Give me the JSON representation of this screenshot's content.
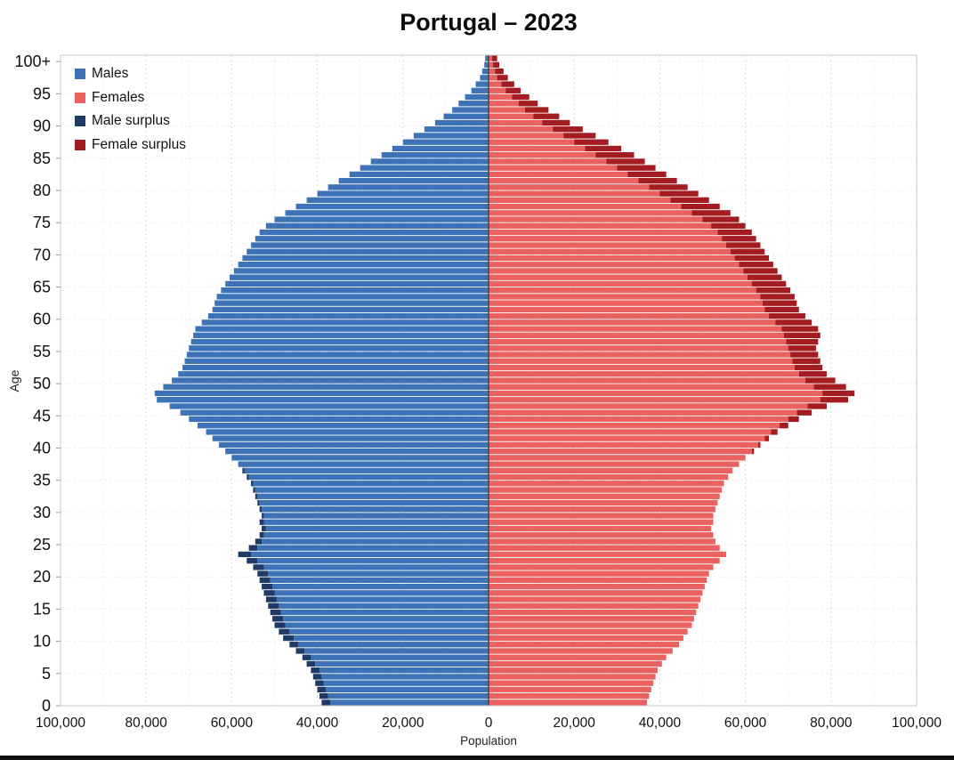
{
  "title": "Portugal – 2023",
  "axis": {
    "xlabel": "Population",
    "ylabel": "Age"
  },
  "legend": [
    {
      "label": "Males",
      "color": "#3d73b6"
    },
    {
      "label": "Females",
      "color": "#ea6160"
    },
    {
      "label": "Male surplus",
      "color": "#203a66"
    },
    {
      "label": "Female surplus",
      "color": "#a21c21"
    }
  ],
  "chart_data": {
    "type": "bar",
    "subtype": "population-pyramid",
    "title": "Portugal – 2023",
    "xlabel": "Population",
    "ylabel": "Age",
    "age_range": [
      0,
      100
    ],
    "top_bin_label": "100+",
    "xlim": [
      -100000,
      100000
    ],
    "grid": true,
    "legend_position": "upper-left",
    "x_ticks": [
      -100000,
      -80000,
      -60000,
      -40000,
      -20000,
      0,
      20000,
      40000,
      60000,
      80000,
      100000
    ],
    "x_tick_labels": [
      "100,000",
      "80,000",
      "60,000",
      "40,000",
      "20,000",
      "0",
      "20,000",
      "40,000",
      "60,000",
      "80,000",
      "100,000"
    ],
    "y_ticks": [
      0,
      5,
      10,
      15,
      20,
      25,
      30,
      35,
      40,
      45,
      50,
      55,
      60,
      65,
      70,
      75,
      80,
      85,
      90,
      95,
      100
    ],
    "y_tick_labels": [
      "0",
      "5",
      "10",
      "15",
      "20",
      "25",
      "30",
      "35",
      "40",
      "45",
      "50",
      "55",
      "60",
      "65",
      "70",
      "75",
      "80",
      "85",
      "90",
      "95",
      "100+"
    ],
    "series": [
      {
        "name": "Males",
        "side": "left",
        "color": "#3d73b6",
        "surplus_color": "#203a66",
        "values": [
          39000,
          39500,
          40000,
          40500,
          41000,
          41500,
          42500,
          43500,
          45000,
          46500,
          48000,
          49000,
          50000,
          50500,
          51000,
          51500,
          52000,
          52500,
          53000,
          53500,
          54000,
          55000,
          56500,
          58500,
          56000,
          54500,
          53500,
          53000,
          53500,
          53000,
          53500,
          54000,
          54500,
          55000,
          55500,
          56500,
          57500,
          58500,
          60000,
          61500,
          63000,
          64500,
          66000,
          68000,
          70000,
          72000,
          74500,
          77500,
          78000,
          76000,
          74000,
          72500,
          71500,
          71000,
          70500,
          70000,
          69500,
          69000,
          68500,
          67000,
          65500,
          64500,
          64000,
          63500,
          62500,
          61500,
          60500,
          59500,
          58500,
          57500,
          56500,
          55500,
          54500,
          53500,
          52000,
          50000,
          47500,
          45000,
          42500,
          40000,
          37500,
          35000,
          32500,
          30000,
          27500,
          25000,
          22500,
          20000,
          17500,
          15000,
          12500,
          10500,
          8500,
          7000,
          5500,
          4000,
          3000,
          2000,
          1500,
          1000,
          800
        ]
      },
      {
        "name": "Females",
        "side": "right",
        "color": "#ea6160",
        "surplus_color": "#a21c21",
        "values": [
          37000,
          37500,
          38000,
          38500,
          39000,
          39500,
          40500,
          41500,
          43000,
          44500,
          45500,
          46500,
          47500,
          48000,
          48500,
          49000,
          49500,
          50000,
          50500,
          51000,
          51500,
          52500,
          54000,
          55500,
          54000,
          53000,
          52500,
          52000,
          52500,
          52500,
          53000,
          53500,
          54000,
          54500,
          55000,
          56000,
          57000,
          58500,
          60000,
          62000,
          63500,
          65500,
          67500,
          70000,
          72500,
          75500,
          79000,
          84000,
          85500,
          83500,
          81000,
          79000,
          78000,
          77500,
          77000,
          76500,
          77000,
          77500,
          77000,
          75500,
          74000,
          72500,
          72000,
          71500,
          70500,
          69500,
          68500,
          67500,
          66500,
          65500,
          64500,
          63500,
          62500,
          61500,
          60000,
          58500,
          56500,
          54000,
          51500,
          49000,
          46500,
          44000,
          41500,
          39000,
          36500,
          34000,
          31000,
          28000,
          25000,
          22000,
          19000,
          16500,
          14000,
          11500,
          9500,
          7500,
          6000,
          4500,
          3500,
          2500,
          2000
        ]
      }
    ]
  }
}
